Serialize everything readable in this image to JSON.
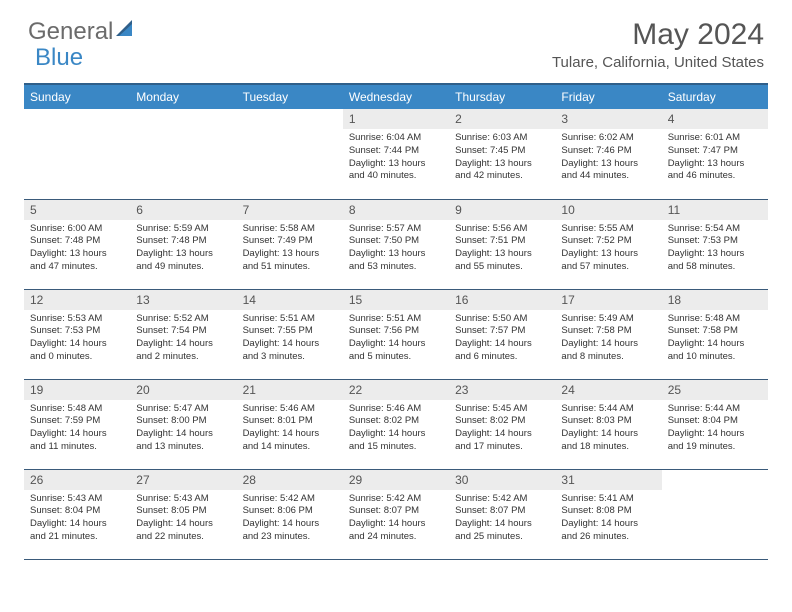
{
  "brand": {
    "general": "General",
    "blue": "Blue"
  },
  "title": "May 2024",
  "location": "Tulare, California, United States",
  "colors": {
    "header_bg": "#3a87c5",
    "header_border_top": "#2f5f8a",
    "row_border": "#3a5a7a",
    "daynum_bg": "#ececec",
    "text": "#333333",
    "title_text": "#555555"
  },
  "weekdays": [
    "Sunday",
    "Monday",
    "Tuesday",
    "Wednesday",
    "Thursday",
    "Friday",
    "Saturday"
  ],
  "weeks": [
    [
      null,
      null,
      null,
      {
        "n": "1",
        "sr": "6:04 AM",
        "ss": "7:44 PM",
        "dl": "13 hours and 40 minutes."
      },
      {
        "n": "2",
        "sr": "6:03 AM",
        "ss": "7:45 PM",
        "dl": "13 hours and 42 minutes."
      },
      {
        "n": "3",
        "sr": "6:02 AM",
        "ss": "7:46 PM",
        "dl": "13 hours and 44 minutes."
      },
      {
        "n": "4",
        "sr": "6:01 AM",
        "ss": "7:47 PM",
        "dl": "13 hours and 46 minutes."
      }
    ],
    [
      {
        "n": "5",
        "sr": "6:00 AM",
        "ss": "7:48 PM",
        "dl": "13 hours and 47 minutes."
      },
      {
        "n": "6",
        "sr": "5:59 AM",
        "ss": "7:48 PM",
        "dl": "13 hours and 49 minutes."
      },
      {
        "n": "7",
        "sr": "5:58 AM",
        "ss": "7:49 PM",
        "dl": "13 hours and 51 minutes."
      },
      {
        "n": "8",
        "sr": "5:57 AM",
        "ss": "7:50 PM",
        "dl": "13 hours and 53 minutes."
      },
      {
        "n": "9",
        "sr": "5:56 AM",
        "ss": "7:51 PM",
        "dl": "13 hours and 55 minutes."
      },
      {
        "n": "10",
        "sr": "5:55 AM",
        "ss": "7:52 PM",
        "dl": "13 hours and 57 minutes."
      },
      {
        "n": "11",
        "sr": "5:54 AM",
        "ss": "7:53 PM",
        "dl": "13 hours and 58 minutes."
      }
    ],
    [
      {
        "n": "12",
        "sr": "5:53 AM",
        "ss": "7:53 PM",
        "dl": "14 hours and 0 minutes."
      },
      {
        "n": "13",
        "sr": "5:52 AM",
        "ss": "7:54 PM",
        "dl": "14 hours and 2 minutes."
      },
      {
        "n": "14",
        "sr": "5:51 AM",
        "ss": "7:55 PM",
        "dl": "14 hours and 3 minutes."
      },
      {
        "n": "15",
        "sr": "5:51 AM",
        "ss": "7:56 PM",
        "dl": "14 hours and 5 minutes."
      },
      {
        "n": "16",
        "sr": "5:50 AM",
        "ss": "7:57 PM",
        "dl": "14 hours and 6 minutes."
      },
      {
        "n": "17",
        "sr": "5:49 AM",
        "ss": "7:58 PM",
        "dl": "14 hours and 8 minutes."
      },
      {
        "n": "18",
        "sr": "5:48 AM",
        "ss": "7:58 PM",
        "dl": "14 hours and 10 minutes."
      }
    ],
    [
      {
        "n": "19",
        "sr": "5:48 AM",
        "ss": "7:59 PM",
        "dl": "14 hours and 11 minutes."
      },
      {
        "n": "20",
        "sr": "5:47 AM",
        "ss": "8:00 PM",
        "dl": "14 hours and 13 minutes."
      },
      {
        "n": "21",
        "sr": "5:46 AM",
        "ss": "8:01 PM",
        "dl": "14 hours and 14 minutes."
      },
      {
        "n": "22",
        "sr": "5:46 AM",
        "ss": "8:02 PM",
        "dl": "14 hours and 15 minutes."
      },
      {
        "n": "23",
        "sr": "5:45 AM",
        "ss": "8:02 PM",
        "dl": "14 hours and 17 minutes."
      },
      {
        "n": "24",
        "sr": "5:44 AM",
        "ss": "8:03 PM",
        "dl": "14 hours and 18 minutes."
      },
      {
        "n": "25",
        "sr": "5:44 AM",
        "ss": "8:04 PM",
        "dl": "14 hours and 19 minutes."
      }
    ],
    [
      {
        "n": "26",
        "sr": "5:43 AM",
        "ss": "8:04 PM",
        "dl": "14 hours and 21 minutes."
      },
      {
        "n": "27",
        "sr": "5:43 AM",
        "ss": "8:05 PM",
        "dl": "14 hours and 22 minutes."
      },
      {
        "n": "28",
        "sr": "5:42 AM",
        "ss": "8:06 PM",
        "dl": "14 hours and 23 minutes."
      },
      {
        "n": "29",
        "sr": "5:42 AM",
        "ss": "8:07 PM",
        "dl": "14 hours and 24 minutes."
      },
      {
        "n": "30",
        "sr": "5:42 AM",
        "ss": "8:07 PM",
        "dl": "14 hours and 25 minutes."
      },
      {
        "n": "31",
        "sr": "5:41 AM",
        "ss": "8:08 PM",
        "dl": "14 hours and 26 minutes."
      },
      null
    ]
  ],
  "labels": {
    "sunrise": "Sunrise: ",
    "sunset": "Sunset: ",
    "daylight": "Daylight: "
  }
}
